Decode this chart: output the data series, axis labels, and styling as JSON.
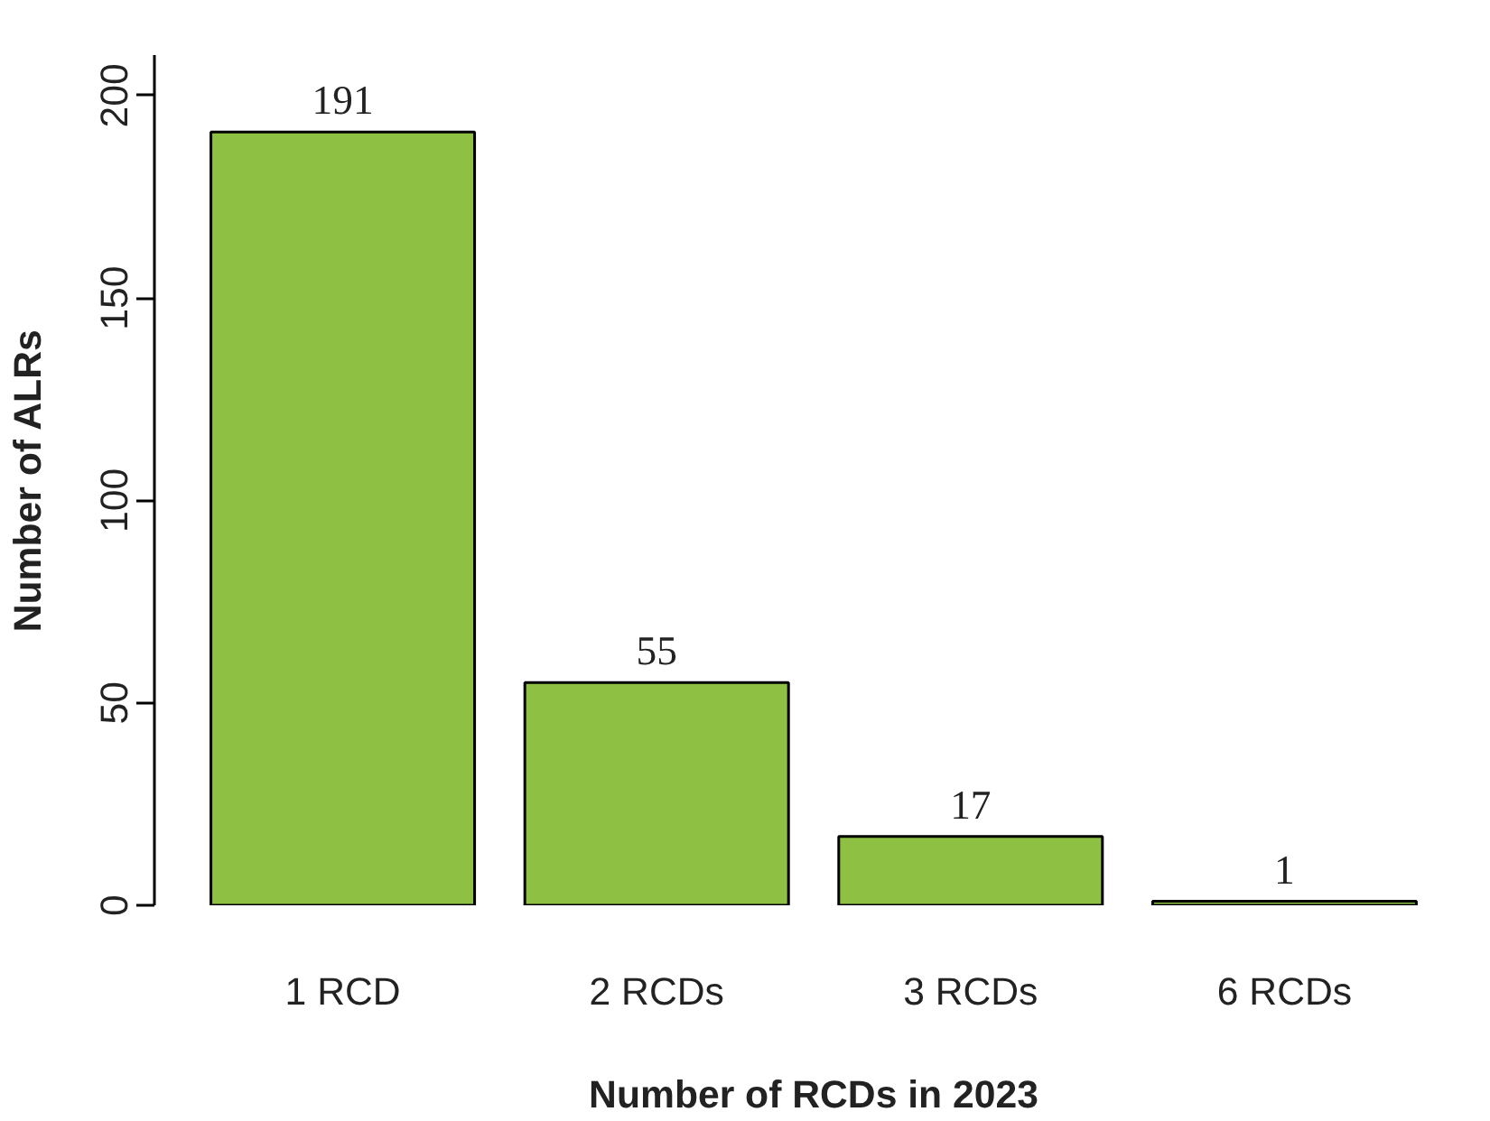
{
  "chart_data": {
    "type": "bar",
    "xlabel": "Number of RCDs in 2023",
    "ylabel": "Number of ALRs",
    "categories": [
      "1 RCD",
      "2 RCDs",
      "3 RCDs",
      "6 RCDs"
    ],
    "values": [
      191,
      55,
      17,
      1
    ],
    "color": "#8dc043",
    "ylim": [
      0,
      210
    ],
    "yticks": [
      0,
      50,
      100,
      150,
      200
    ],
    "grid": false,
    "data_labels": true
  }
}
